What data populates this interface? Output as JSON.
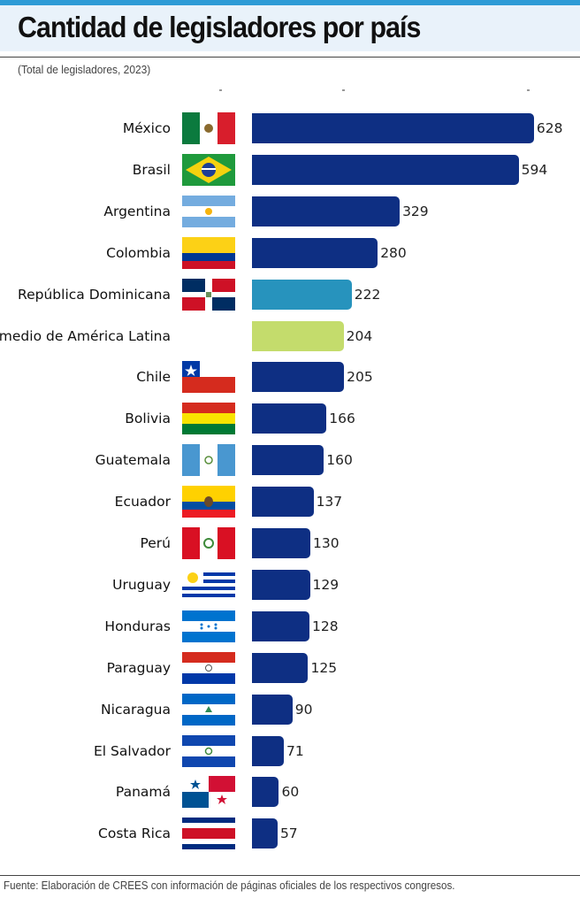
{
  "header": {
    "title": "Cantidad de legisladores por país",
    "subtitle": "(Total de legisladores, 2023)"
  },
  "footer": {
    "source": "Fuente: Elaboración de CREES con información de páginas oficiales de los respectivos congresos."
  },
  "colors": {
    "country_bar": "#0e2f83",
    "highlight_bar": "#2793bd",
    "average_bar": "#c4dc6c",
    "title_band": "#e9f2fa",
    "accent_line": "#2e9bd6"
  },
  "chart_data": {
    "type": "bar",
    "orientation": "horizontal",
    "title": "Cantidad de legisladores por país",
    "subtitle": "(Total de legisladores, 2023)",
    "xlabel": "",
    "ylabel": "",
    "xlim": [
      0,
      640
    ],
    "grid": false,
    "legend": "none",
    "categories": [
      "México",
      "Brasil",
      "Argentina",
      "Colombia",
      "República Dominicana",
      "Promedio de América Latina",
      "Chile",
      "Bolivia",
      "Guatemala",
      "Ecuador",
      "Perú",
      "Uruguay",
      "Honduras",
      "Paraguay",
      "Nicaragua",
      "El Salvador",
      "Panamá",
      "Costa Rica"
    ],
    "values": [
      628,
      594,
      329,
      280,
      222,
      204,
      205,
      166,
      160,
      137,
      130,
      129,
      128,
      125,
      90,
      71,
      60,
      57
    ],
    "bar_styles": [
      "country",
      "country",
      "country",
      "country",
      "highlight",
      "average",
      "country",
      "country",
      "country",
      "country",
      "country",
      "country",
      "country",
      "country",
      "country",
      "country",
      "country",
      "country"
    ],
    "flags": [
      "mexico-flag",
      "brazil-flag",
      "argentina-flag",
      "colombia-flag",
      "dominican-republic-flag",
      "",
      "chile-flag",
      "bolivia-flag",
      "guatemala-flag",
      "ecuador-flag",
      "peru-flag",
      "uruguay-flag",
      "honduras-flag",
      "paraguay-flag",
      "nicaragua-flag",
      "el-salvador-flag",
      "panama-flag",
      "costa-rica-flag"
    ]
  }
}
